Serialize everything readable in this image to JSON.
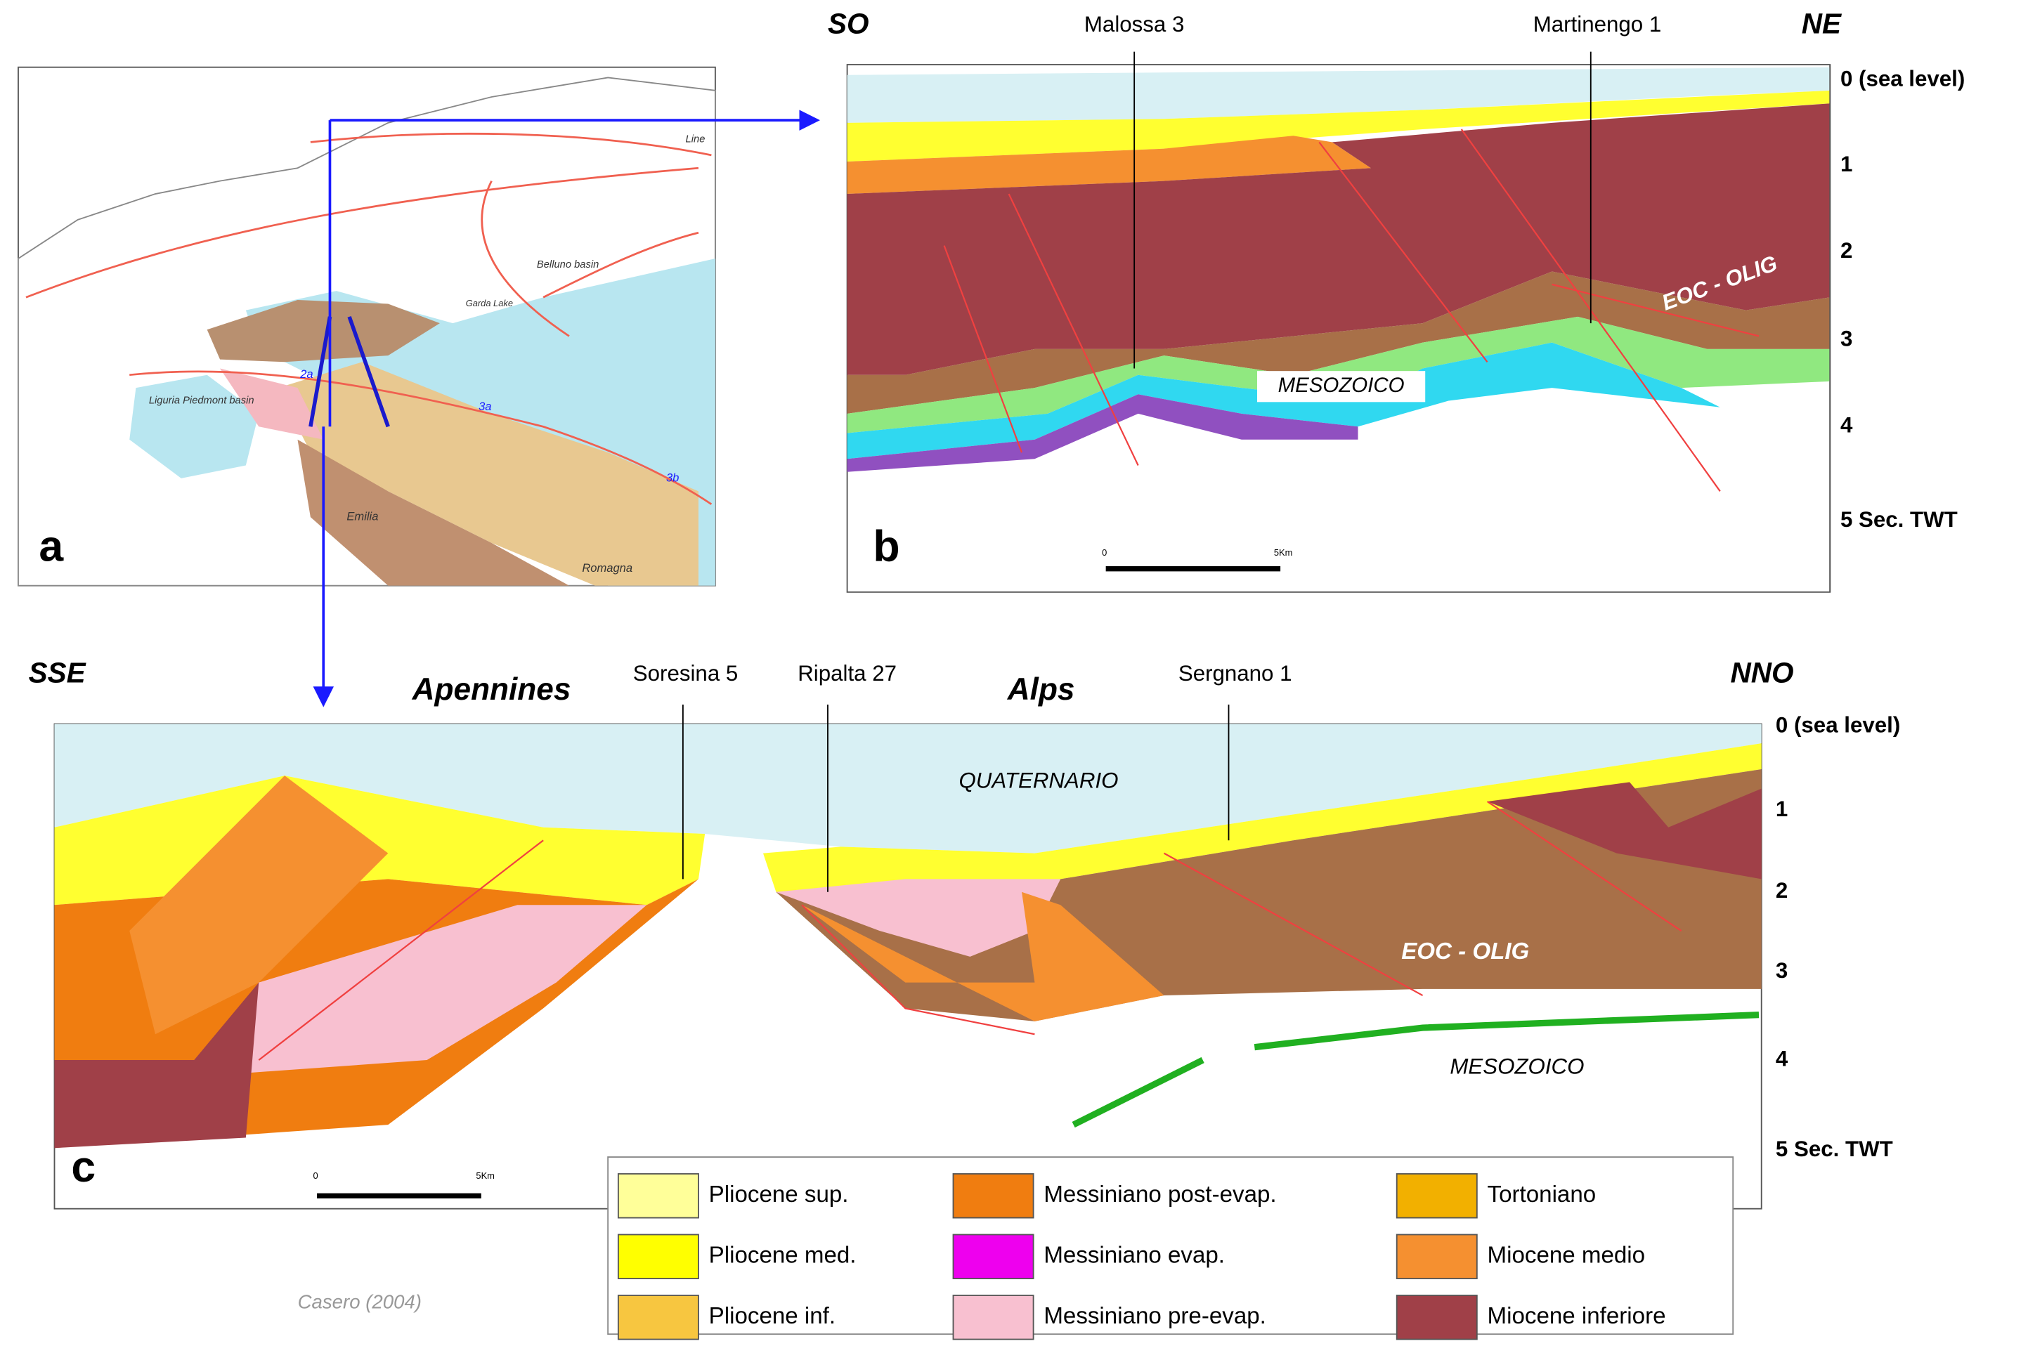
{
  "map": {
    "label": "a",
    "labels": [
      "Line",
      "Belluno basin",
      "Garda Lake",
      "Liguria Piedmont basin",
      "Emilia",
      "Romagna",
      "2a",
      "3a",
      "3b"
    ]
  },
  "section_b": {
    "label": "b",
    "left": "SO",
    "right": "NE",
    "wells": [
      "Malossa 3",
      "Martinengo 1"
    ],
    "units": [
      "EOC - OLIG",
      "MESOZOICO"
    ],
    "depth_labels": [
      "0 (sea level)",
      "1",
      "2",
      "3",
      "4",
      "5 Sec. TWT"
    ],
    "scale_labels": [
      "0",
      "5Km"
    ]
  },
  "section_c": {
    "label": "c",
    "left": "SSE",
    "right": "NNO",
    "regions": [
      "Apennines",
      "Alps"
    ],
    "wells": [
      "Soresina 5",
      "Ripalta 27",
      "Sergnano 1"
    ],
    "units": [
      "QUATERNARIO",
      "EOC - OLIG",
      "MESOZOICO"
    ],
    "depth_labels": [
      "0 (sea level)",
      "1",
      "2",
      "3",
      "4",
      "5 Sec. TWT"
    ],
    "scale_labels": [
      "0",
      "5Km"
    ]
  },
  "legend": [
    {
      "label": "Pliocene sup.",
      "color": "#ffff99"
    },
    {
      "label": "Pliocene med.",
      "color": "#ffff00"
    },
    {
      "label": "Pliocene inf.",
      "color": "#f7c640"
    },
    {
      "label": "Messiniano post-evap.",
      "color": "#f07d10"
    },
    {
      "label": "Messiniano evap.",
      "color": "#ee00ee"
    },
    {
      "label": "Messiniano pre-evap.",
      "color": "#f8c0d0"
    },
    {
      "label": "Tortoniano",
      "color": "#f2b000"
    },
    {
      "label": "Miocene medio",
      "color": "#f59030"
    },
    {
      "label": "Miocene inferiore",
      "color": "#a04048"
    }
  ],
  "citation": "Casero (2004)"
}
